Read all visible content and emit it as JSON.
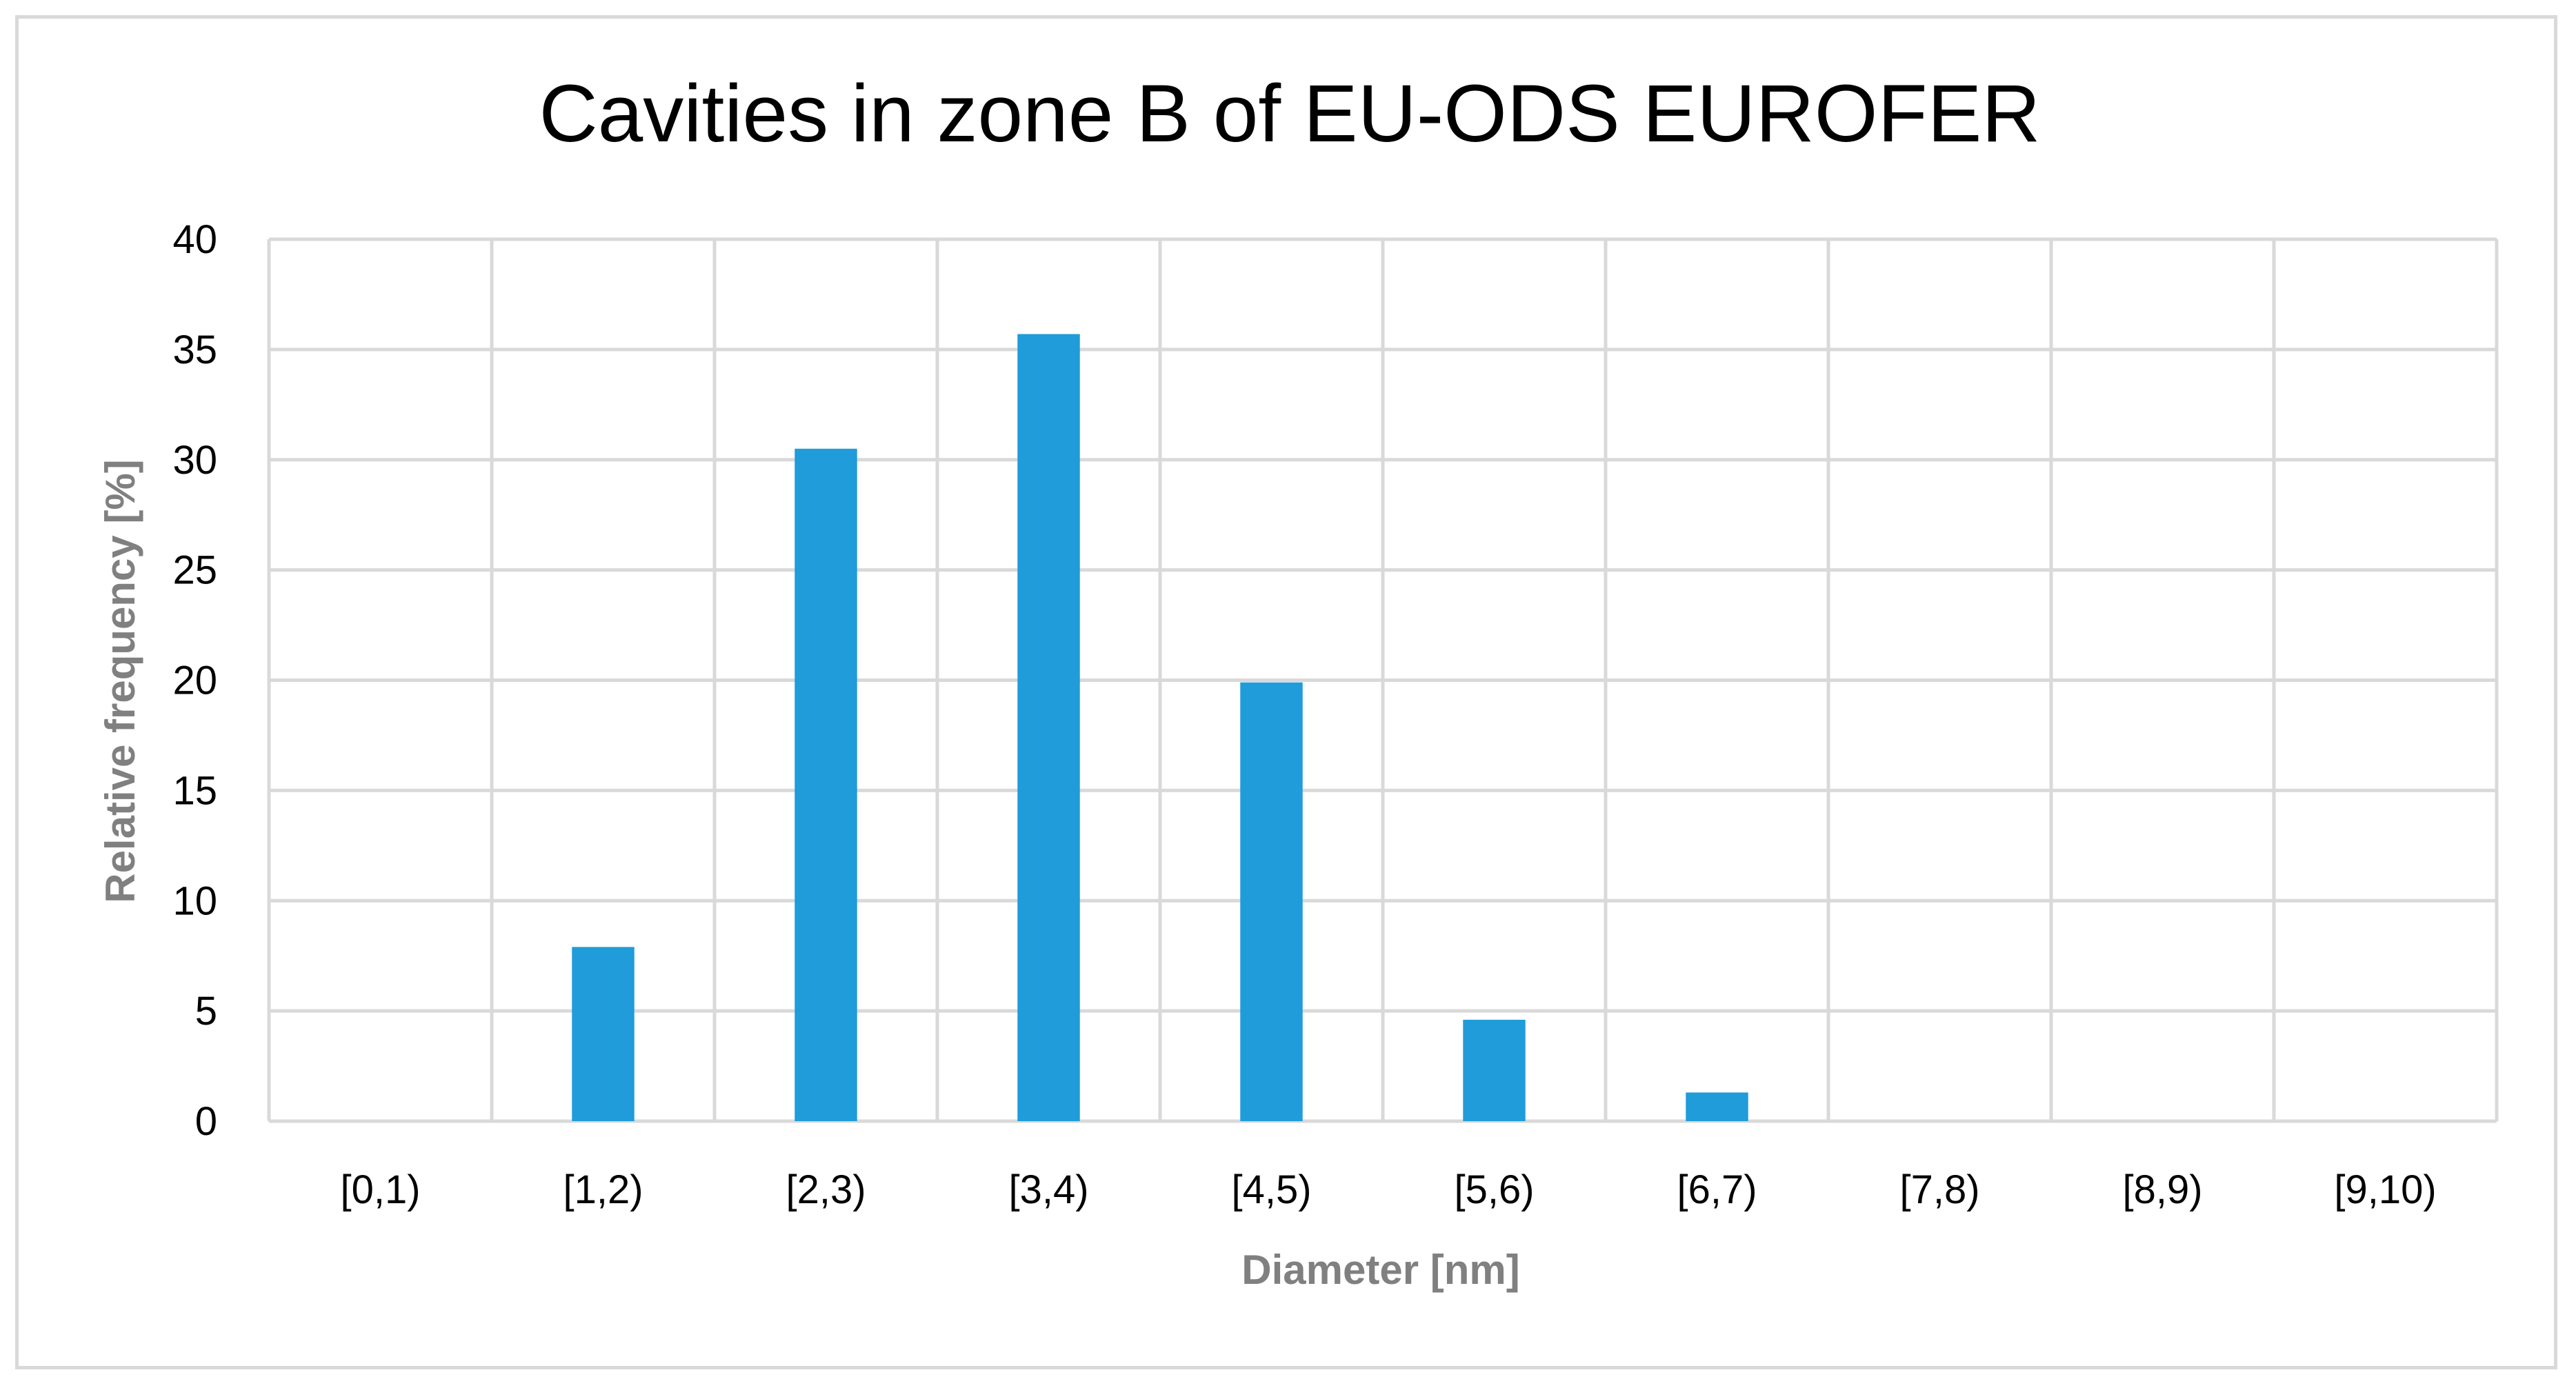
{
  "chart_data": {
    "type": "bar",
    "title": "Cavities in zone B of EU-ODS EUROFER",
    "xlabel": "Diameter [nm]",
    "ylabel": "Relative frequency [%]",
    "categories": [
      "[0,1)",
      "[1,2)",
      "[2,3)",
      "[3,4)",
      "[4,5)",
      "[5,6)",
      "[6,7)",
      "[7,8)",
      "[8,9)",
      "[9,10)"
    ],
    "values": [
      0,
      7.9,
      30.5,
      35.7,
      19.9,
      4.6,
      1.3,
      0,
      0,
      0
    ],
    "ylim": [
      0,
      40
    ],
    "yticks": [
      "0",
      "5",
      "10",
      "15",
      "20",
      "25",
      "30",
      "35",
      "40"
    ],
    "grid": true,
    "legend": "none",
    "bar_color": "#1f9cd9"
  }
}
